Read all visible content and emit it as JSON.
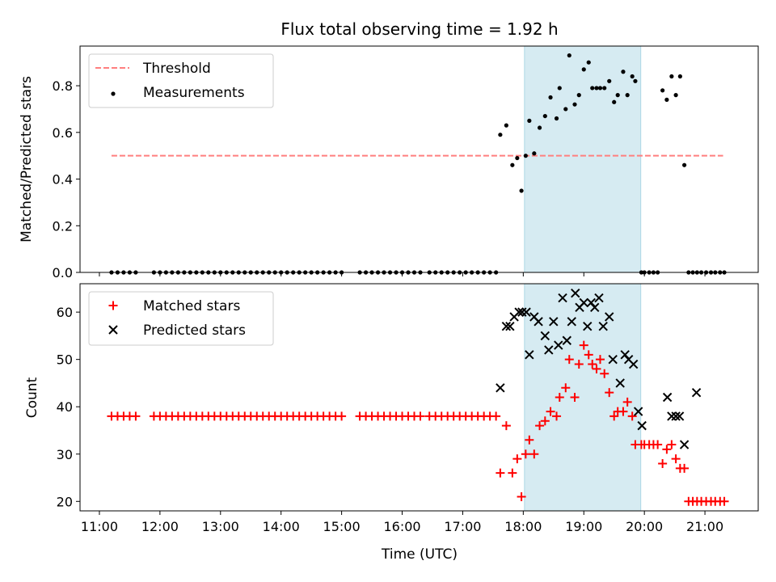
{
  "figure": {
    "title": "Flux total observing time = 1.92 h",
    "shaded_span": {
      "start_hour": 18.02,
      "end_hour": 19.94,
      "color": "#add8e6"
    }
  },
  "chart_data": [
    {
      "type": "scatter",
      "ylabel": "Matched/Predicted stars",
      "ylim": [
        0,
        0.97
      ],
      "yticks": [
        0.0,
        0.2,
        0.4,
        0.6,
        0.8
      ],
      "ytick_labels": [
        "0.0",
        "0.2",
        "0.4",
        "0.6",
        "0.8"
      ],
      "legend": {
        "placement": "top-left",
        "entries": [
          {
            "label": "Threshold",
            "style": "dashed-line",
            "color": "#ff7f7f"
          },
          {
            "label": "Measurements",
            "style": "dot",
            "color": "#000000"
          }
        ]
      },
      "threshold": {
        "value": 0.5,
        "x_start": 11.2,
        "x_end": 21.3,
        "color": "#ff7f7f"
      },
      "series": [
        {
          "name": "Measurements",
          "marker": "dot",
          "color": "#000000",
          "x": [
            11.2,
            11.3,
            11.4,
            11.5,
            11.6,
            11.9,
            12.0,
            12.1,
            12.2,
            12.3,
            12.4,
            12.5,
            12.6,
            12.7,
            12.8,
            12.9,
            13.0,
            13.1,
            13.2,
            13.3,
            13.4,
            13.5,
            13.6,
            13.7,
            13.8,
            13.9,
            14.0,
            14.1,
            14.2,
            14.3,
            14.4,
            14.5,
            14.6,
            14.7,
            14.8,
            14.9,
            15.0,
            15.3,
            15.4,
            15.5,
            15.6,
            15.7,
            15.8,
            15.9,
            16.0,
            16.1,
            16.2,
            16.3,
            16.45,
            16.55,
            16.65,
            16.75,
            16.85,
            16.95,
            17.05,
            17.15,
            17.25,
            17.35,
            17.45,
            17.55,
            17.62,
            17.72,
            17.82,
            17.9,
            17.97,
            18.04,
            18.1,
            18.18,
            18.27,
            18.36,
            18.45,
            18.55,
            18.6,
            18.7,
            18.76,
            18.85,
            18.92,
            19.0,
            19.08,
            19.14,
            19.21,
            19.27,
            19.34,
            19.42,
            19.5,
            19.56,
            19.65,
            19.72,
            19.8,
            19.85,
            19.95,
            20.0,
            20.08,
            20.15,
            20.22,
            20.3,
            20.37,
            20.45,
            20.52,
            20.59,
            20.66,
            20.73,
            20.8,
            20.87,
            20.94,
            21.02,
            21.1,
            21.17,
            21.25,
            21.32
          ],
          "y": [
            0,
            0,
            0,
            0,
            0,
            0,
            0,
            0,
            0,
            0,
            0,
            0,
            0,
            0,
            0,
            0,
            0,
            0,
            0,
            0,
            0,
            0,
            0,
            0,
            0,
            0,
            0,
            0,
            0,
            0,
            0,
            0,
            0,
            0,
            0,
            0,
            0,
            0,
            0,
            0,
            0,
            0,
            0,
            0,
            0,
            0,
            0,
            0,
            0,
            0,
            0,
            0,
            0,
            0,
            0,
            0,
            0,
            0,
            0,
            0,
            0.59,
            0.63,
            0.46,
            0.49,
            0.35,
            0.5,
            0.65,
            0.51,
            0.62,
            0.67,
            0.75,
            0.66,
            0.79,
            0.7,
            0.93,
            0.72,
            0.76,
            0.87,
            0.9,
            0.79,
            0.79,
            0.79,
            0.79,
            0.82,
            0.73,
            0.76,
            0.86,
            0.76,
            0.84,
            0.82,
            0,
            0,
            0,
            0,
            0,
            0.78,
            0.74,
            0.84,
            0.76,
            0.84,
            0.46,
            0,
            0,
            0,
            0,
            0,
            0,
            0,
            0,
            0
          ]
        }
      ]
    },
    {
      "type": "scatter",
      "xlabel": "Time (UTC)",
      "ylabel": "Count",
      "xlim": [
        10.68,
        21.88
      ],
      "xticks": [
        11,
        12,
        13,
        14,
        15,
        16,
        17,
        18,
        19,
        20,
        21
      ],
      "xtick_labels": [
        "11:00",
        "12:00",
        "13:00",
        "14:00",
        "15:00",
        "16:00",
        "17:00",
        "18:00",
        "19:00",
        "20:00",
        "21:00"
      ],
      "ylim": [
        18,
        66
      ],
      "yticks": [
        20,
        30,
        40,
        50,
        60
      ],
      "ytick_labels": [
        "20",
        "30",
        "40",
        "50",
        "60"
      ],
      "legend": {
        "placement": "top-left",
        "entries": [
          {
            "label": "Matched stars",
            "style": "plus",
            "color": "#ff0000"
          },
          {
            "label": "Predicted stars",
            "style": "cross",
            "color": "#000000"
          }
        ]
      },
      "series": [
        {
          "name": "Matched stars",
          "marker": "plus",
          "color": "#ff0000",
          "x": [
            11.2,
            11.3,
            11.4,
            11.5,
            11.6,
            11.9,
            12.0,
            12.1,
            12.2,
            12.3,
            12.4,
            12.5,
            12.6,
            12.7,
            12.8,
            12.9,
            13.0,
            13.1,
            13.2,
            13.3,
            13.4,
            13.5,
            13.6,
            13.7,
            13.8,
            13.9,
            14.0,
            14.1,
            14.2,
            14.3,
            14.4,
            14.5,
            14.6,
            14.7,
            14.8,
            14.9,
            15.0,
            15.3,
            15.4,
            15.5,
            15.6,
            15.7,
            15.8,
            15.9,
            16.0,
            16.1,
            16.2,
            16.3,
            16.45,
            16.55,
            16.65,
            16.75,
            16.85,
            16.95,
            17.05,
            17.15,
            17.25,
            17.35,
            17.45,
            17.55,
            17.62,
            17.72,
            17.82,
            17.9,
            17.97,
            18.04,
            18.1,
            18.18,
            18.27,
            18.36,
            18.45,
            18.55,
            18.6,
            18.7,
            18.76,
            18.85,
            18.92,
            19.0,
            19.08,
            19.14,
            19.21,
            19.27,
            19.34,
            19.42,
            19.5,
            19.56,
            19.65,
            19.72,
            19.8,
            19.85,
            19.95,
            20.0,
            20.08,
            20.15,
            20.22,
            20.3,
            20.37,
            20.45,
            20.52,
            20.59,
            20.66,
            20.73,
            20.8,
            20.87,
            20.94,
            21.02,
            21.1,
            21.17,
            21.25,
            21.32
          ],
          "y": [
            38,
            38,
            38,
            38,
            38,
            38,
            38,
            38,
            38,
            38,
            38,
            38,
            38,
            38,
            38,
            38,
            38,
            38,
            38,
            38,
            38,
            38,
            38,
            38,
            38,
            38,
            38,
            38,
            38,
            38,
            38,
            38,
            38,
            38,
            38,
            38,
            38,
            38,
            38,
            38,
            38,
            38,
            38,
            38,
            38,
            38,
            38,
            38,
            38,
            38,
            38,
            38,
            38,
            38,
            38,
            38,
            38,
            38,
            38,
            38,
            26,
            36,
            26,
            29,
            21,
            30,
            33,
            30,
            36,
            37,
            39,
            38,
            42,
            44,
            50,
            42,
            49,
            53,
            51,
            49,
            48,
            50,
            47,
            43,
            38,
            39,
            39,
            41,
            38,
            32,
            32,
            32,
            32,
            32,
            32,
            28,
            31,
            32,
            29,
            27,
            27,
            20,
            20,
            20,
            20,
            20,
            20,
            20,
            20,
            20
          ]
        },
        {
          "name": "Predicted stars",
          "marker": "cross",
          "color": "#000000",
          "x": [
            17.62,
            17.72,
            17.78,
            17.85,
            17.93,
            17.98,
            18.05,
            18.1,
            18.18,
            18.25,
            18.36,
            18.42,
            18.5,
            18.58,
            18.65,
            18.72,
            18.8,
            18.86,
            18.93,
            19.0,
            19.06,
            19.12,
            19.18,
            19.25,
            19.32,
            19.42,
            19.48,
            19.6,
            19.68,
            19.74,
            19.82,
            19.9,
            19.96,
            20.38,
            20.45,
            20.52,
            20.58,
            20.66,
            20.86
          ],
          "y": [
            44,
            57,
            57,
            59,
            60,
            60,
            60,
            51,
            59,
            58,
            55,
            52,
            58,
            53,
            63,
            54,
            58,
            64,
            61,
            62,
            57,
            62,
            61,
            63,
            57,
            59,
            50,
            45,
            51,
            50,
            49,
            39,
            36,
            42,
            38,
            38,
            38,
            32,
            43
          ]
        }
      ]
    }
  ]
}
